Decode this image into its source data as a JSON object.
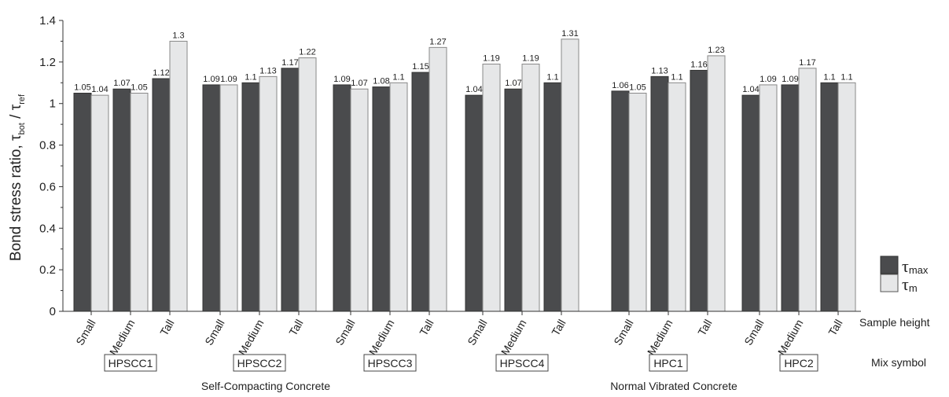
{
  "chart_data": {
    "type": "bar",
    "ylabel": "Bond stress ratio,",
    "ylabel_symbol": "τ",
    "ylabel_sub_num": "bot",
    "ylabel_sub_den": "ref",
    "ylim": [
      0,
      1.4
    ],
    "yticks": [
      "0",
      "0.2",
      "0.4",
      "0.6",
      "0.8",
      "1",
      "1.2",
      "1.4"
    ],
    "sample_height_label": "Sample height",
    "mix_symbol_label": "Mix symbol",
    "legend_position": "right",
    "legend": [
      {
        "symbol": "τ",
        "sub": "max",
        "color": "#4a4b4d"
      },
      {
        "symbol": "τ",
        "sub": "m",
        "color": "#e6e7e8"
      }
    ],
    "families": [
      {
        "name": "Self-Compacting Concrete",
        "mixes": [
          "HPSCC1",
          "HPSCC2",
          "HPSCC3",
          "HPSCC4"
        ]
      },
      {
        "name": "Normal Vibrated Concrete",
        "mixes": [
          "HPC1",
          "HPC2"
        ]
      }
    ],
    "categories": [
      "Small",
      "Medium",
      "Tall"
    ],
    "groups": [
      {
        "mix": "HPSCC1",
        "tau_max": [
          1.05,
          1.07,
          1.12
        ],
        "tau_m": [
          1.04,
          1.05,
          1.3
        ]
      },
      {
        "mix": "HPSCC2",
        "tau_max": [
          1.09,
          1.1,
          1.17
        ],
        "tau_m": [
          1.09,
          1.13,
          1.22
        ]
      },
      {
        "mix": "HPSCC3",
        "tau_max": [
          1.09,
          1.08,
          1.15
        ],
        "tau_m": [
          1.07,
          1.1,
          1.27
        ]
      },
      {
        "mix": "HPSCC4",
        "tau_max": [
          1.04,
          1.07,
          1.1
        ],
        "tau_m": [
          1.19,
          1.19,
          1.31
        ]
      },
      {
        "mix": "HPC1",
        "tau_max": [
          1.06,
          1.13,
          1.16
        ],
        "tau_m": [
          1.05,
          1.1,
          1.23
        ]
      },
      {
        "mix": "HPC2",
        "tau_max": [
          1.04,
          1.09,
          1.1
        ],
        "tau_m": [
          1.09,
          1.17,
          1.1
        ]
      }
    ]
  }
}
